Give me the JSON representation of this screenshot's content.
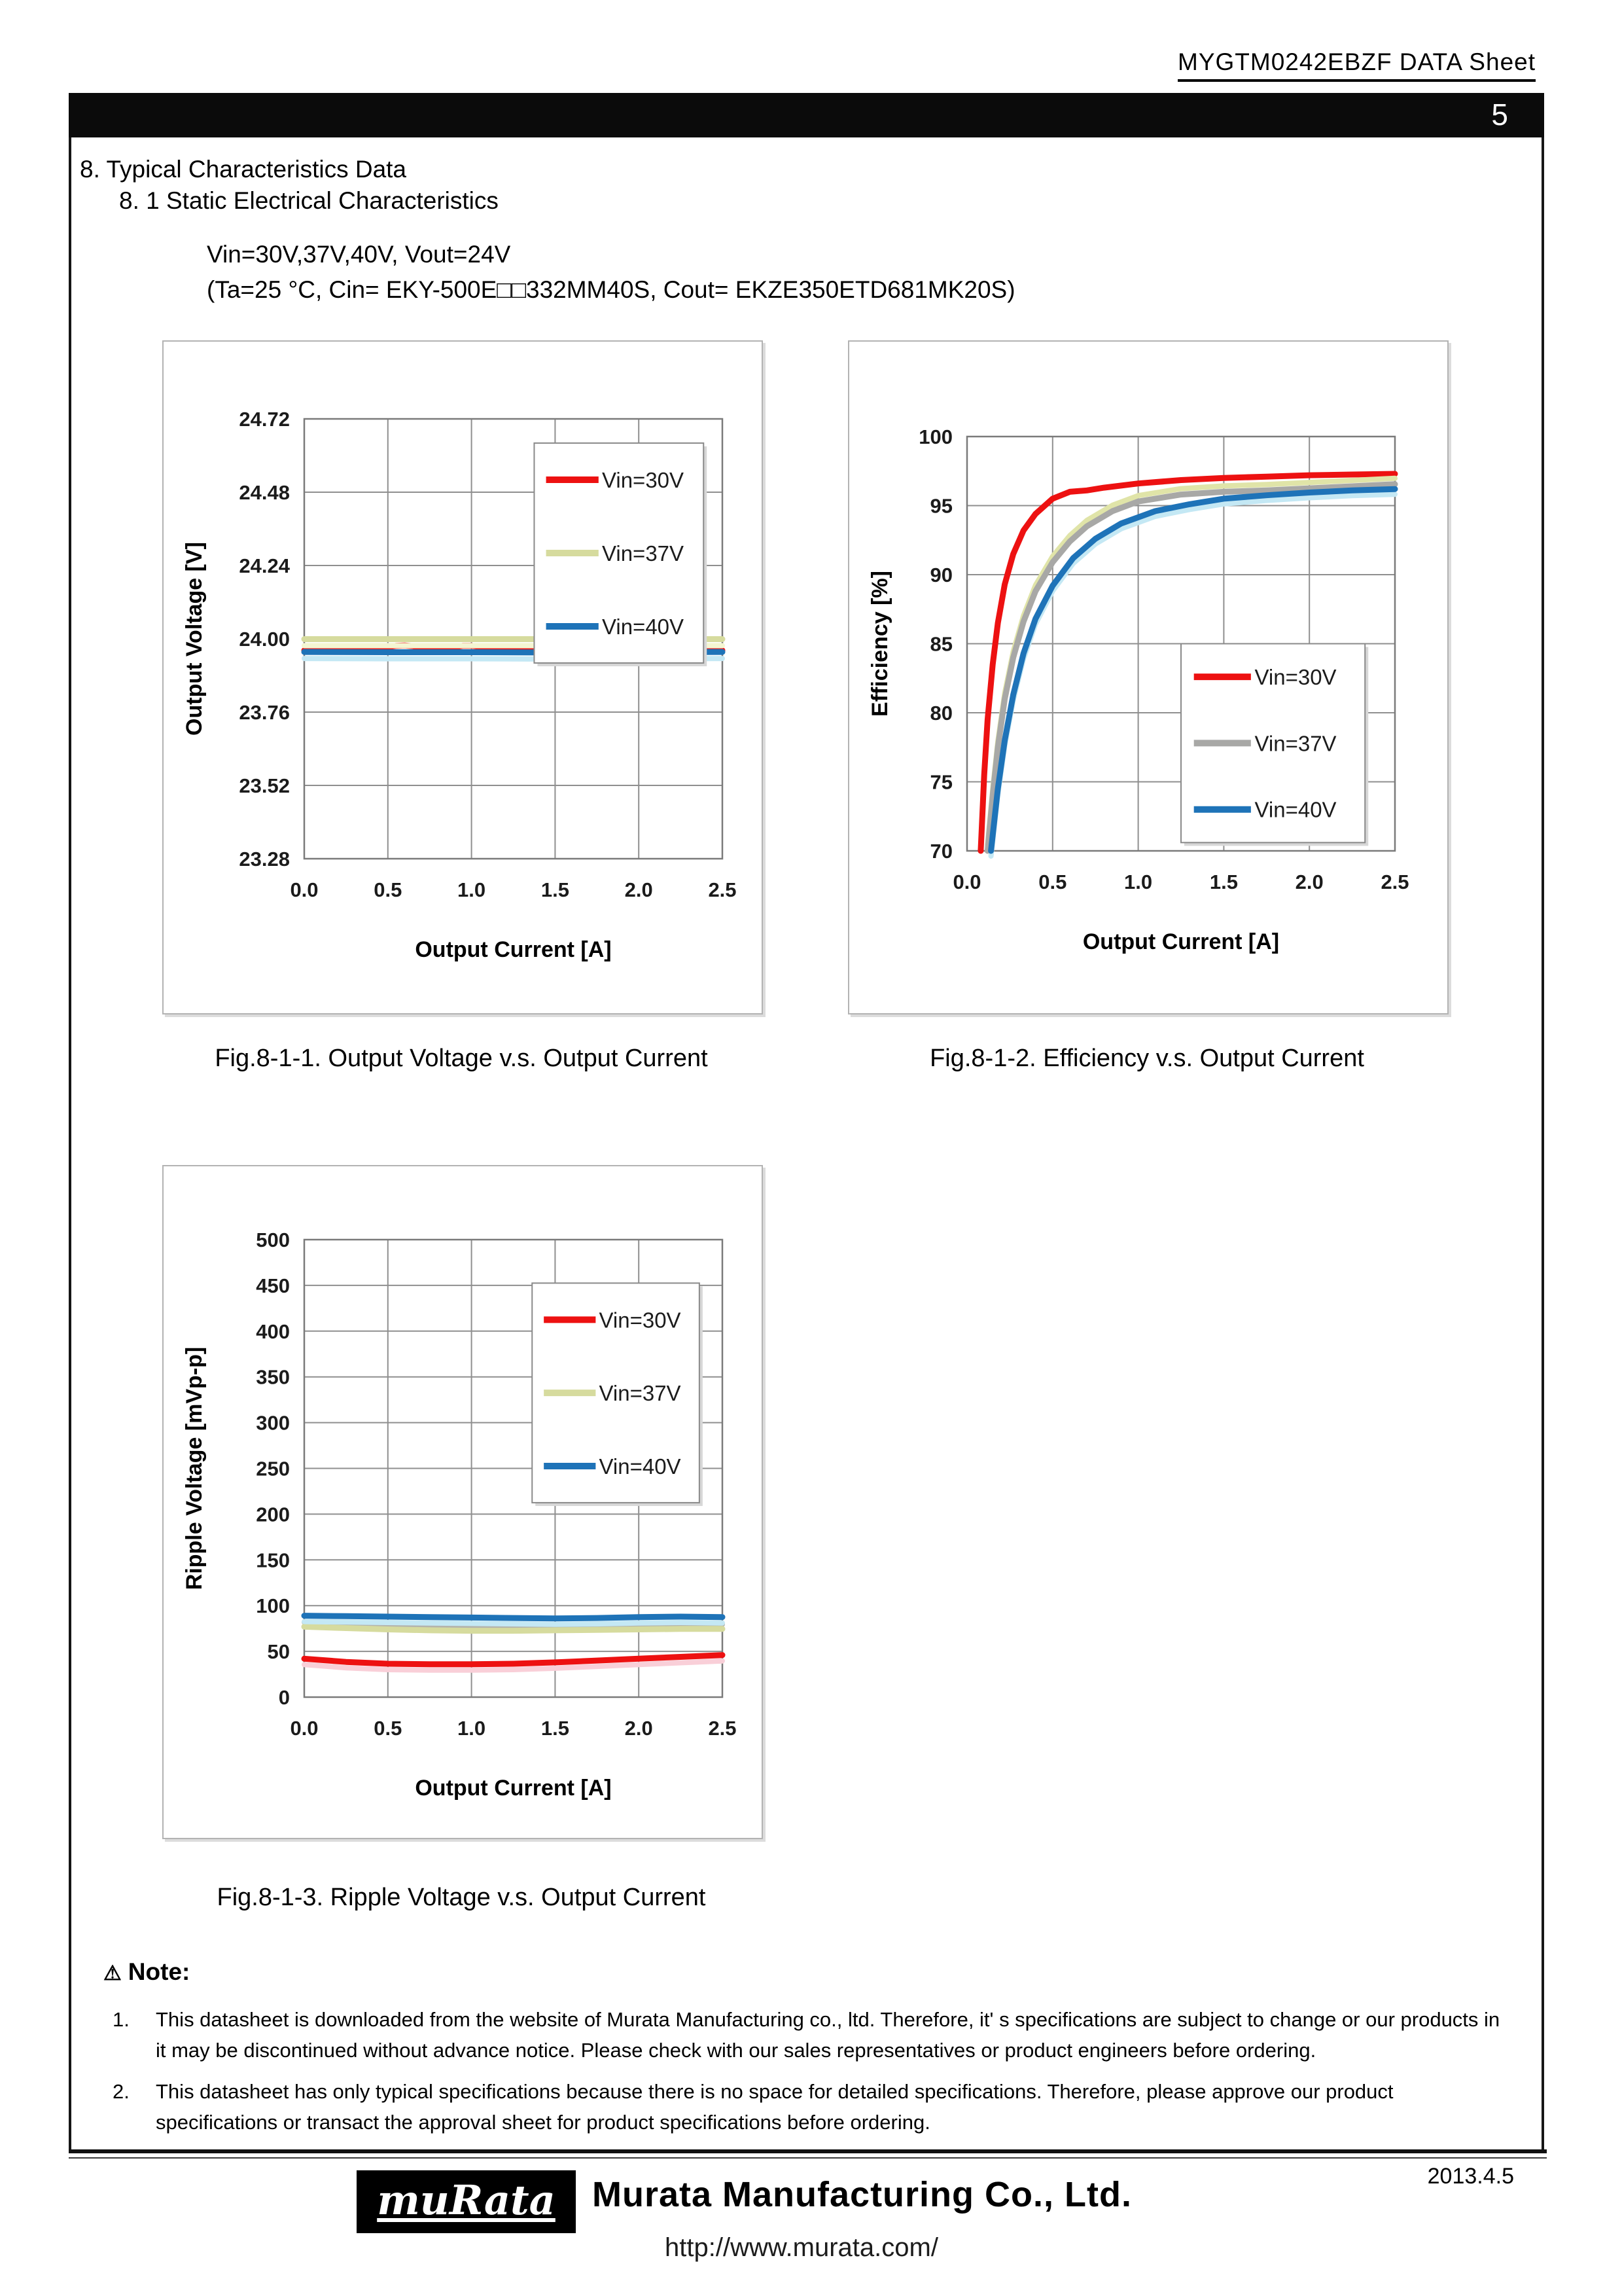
{
  "page": {
    "doc_title": "MYGTM0242EBZF DATA Sheet",
    "page_number": "5",
    "section_heading": "8. Typical Characteristics Data",
    "subsection_heading": "8. 1 Static Electrical Characteristics",
    "condition_line1": "Vin=30V,37V,40V, Vout=24V",
    "condition_line2": "(Ta=25 °C, Cin= EKY-500E□□332MM40S, Cout= EKZE350ETD681MK20S)",
    "date": "2013.4.5"
  },
  "captions": {
    "fig1": "Fig.8-1-1. Output Voltage v.s. Output Current",
    "fig2": "Fig.8-1-2. Efficiency v.s. Output Current",
    "fig3": "Fig.8-1-3. Ripple Voltage v.s. Output Current"
  },
  "note": {
    "icon_glyph": "⚠",
    "heading": "Note:",
    "items": [
      {
        "num": "1.",
        "text": "This datasheet is downloaded from the website of Murata Manufacturing co., ltd. Therefore, it' s specifications are subject to change or our products in it may be discontinued without advance notice. Please check with our sales representatives or product engineers before ordering."
      },
      {
        "num": "2.",
        "text": "This datasheet has only typical specifications because there is no space for detailed specifications. Therefore, please approve our product specifications or transact the approval sheet for product specifications before ordering."
      }
    ]
  },
  "footer": {
    "logo_text": "muRata",
    "company": "Murata Manufacturing Co., Ltd.",
    "url": "http://www.murata.com/"
  },
  "colors": {
    "vin30_red": "#ed1111",
    "vin37_khaki": "#d6db9e",
    "vin37_gray": "#a8a8a6",
    "vin40_blue": "#1e73b8"
  },
  "chart_data": [
    {
      "id": "chart1",
      "type": "line",
      "title": "Fig.8-1-1. Output Voltage v.s. Output Current",
      "xlabel": "Output Current [A]",
      "ylabel": "Output Voltage [V]",
      "x_range": [
        0,
        2.5
      ],
      "y_range": [
        23.28,
        24.72
      ],
      "x_ticks": [
        "0.0",
        "0.5",
        "1.0",
        "1.5",
        "2.0",
        "2.5"
      ],
      "y_ticks": [
        "23.28",
        "23.52",
        "23.76",
        "24.00",
        "24.24",
        "24.48",
        "24.72"
      ],
      "grid": true,
      "legend_position": "upper-right-inside",
      "layout": {
        "margins": {
          "l": 215,
          "t": 118,
          "r": 60,
          "b": 236
        },
        "legend": {
          "x": 0.55,
          "y": 0.055,
          "w": 0.405,
          "h": 0.5
        }
      },
      "series": [
        {
          "name": "Vin=30V",
          "color": "#ed1111",
          "shadow": null,
          "x": [
            0,
            0.2,
            0.4,
            0.5,
            0.55,
            0.6,
            0.65,
            0.7,
            0.8,
            0.9,
            0.95,
            1.0,
            1.05,
            1.1,
            1.2,
            1.5,
            2.0,
            2.5
          ],
          "y": [
            23.962,
            23.962,
            23.965,
            23.973,
            23.977,
            23.978,
            23.976,
            23.969,
            23.964,
            23.973,
            23.977,
            23.977,
            23.974,
            23.966,
            23.962,
            23.961,
            23.962,
            23.962
          ]
        },
        {
          "name": "Vin=37V",
          "color": "#d6db9e",
          "shadow": "#f4f6d2",
          "shadow_dy": 10,
          "x": [
            0,
            0.5,
            1.0,
            1.5,
            2.0,
            2.5
          ],
          "y": [
            23.999,
            23.999,
            23.999,
            23.999,
            23.999,
            23.999
          ]
        },
        {
          "name": "Vin=40V",
          "color": "#1e73b8",
          "shadow": "#c4e8f4",
          "shadow_dy": 10,
          "x": [
            0,
            0.5,
            1.0,
            1.5,
            2.0,
            2.5
          ],
          "y": [
            23.957,
            23.956,
            23.956,
            23.955,
            23.956,
            23.957
          ]
        }
      ]
    },
    {
      "id": "chart2",
      "type": "line",
      "title": "Fig.8-1-2. Efficiency v.s. Output Current",
      "xlabel": "Output Current [A]",
      "ylabel": "Efficiency [%]",
      "x_range": [
        0,
        2.5
      ],
      "y_range": [
        70,
        100
      ],
      "x_ticks": [
        "0.0",
        "0.5",
        "1.0",
        "1.5",
        "2.0",
        "2.5"
      ],
      "y_ticks": [
        "70",
        "75",
        "80",
        "85",
        "90",
        "95",
        "100"
      ],
      "grid": true,
      "legend_position": "lower-right-inside",
      "layout": {
        "margins": {
          "l": 180,
          "t": 145,
          "r": 80,
          "b": 248
        },
        "legend": {
          "x": 0.5,
          "y": 0.5,
          "w": 0.43,
          "h": 0.48
        }
      },
      "series": [
        {
          "name": "Vin=30V",
          "color": "#ed1111",
          "shadow": null,
          "x": [
            0.08,
            0.1,
            0.12,
            0.15,
            0.18,
            0.22,
            0.27,
            0.33,
            0.4,
            0.5,
            0.6,
            0.7,
            0.8,
            1.0,
            1.25,
            1.5,
            1.75,
            2.0,
            2.25,
            2.5
          ],
          "y": [
            70,
            75.5,
            79.5,
            83.5,
            86.5,
            89.3,
            91.5,
            93.2,
            94.4,
            95.5,
            96.0,
            96.1,
            96.3,
            96.6,
            96.85,
            97.0,
            97.1,
            97.2,
            97.25,
            97.3
          ]
        },
        {
          "name": "Vin=37V",
          "color": "#a8a8a6",
          "shadow": "#e0e4a8",
          "shadow_dy": -9,
          "x": [
            0.12,
            0.15,
            0.18,
            0.22,
            0.27,
            0.33,
            0.4,
            0.5,
            0.6,
            0.7,
            0.85,
            1.0,
            1.25,
            1.5,
            1.75,
            2.0,
            2.25,
            2.5
          ],
          "y": [
            70,
            74,
            77.5,
            81,
            84,
            86.6,
            88.8,
            90.9,
            92.4,
            93.5,
            94.6,
            95.3,
            95.8,
            96.0,
            96.1,
            96.25,
            96.4,
            96.55
          ]
        },
        {
          "name": "Vin=40V",
          "color": "#1e73b8",
          "shadow": "#c4e8f4",
          "shadow_dy": 8,
          "x": [
            0.14,
            0.18,
            0.22,
            0.27,
            0.33,
            0.4,
            0.5,
            0.62,
            0.75,
            0.9,
            1.1,
            1.3,
            1.5,
            1.75,
            2.0,
            2.25,
            2.5
          ],
          "y": [
            70,
            74.5,
            78,
            81.3,
            84.3,
            86.8,
            89.2,
            91.2,
            92.6,
            93.7,
            94.6,
            95.1,
            95.5,
            95.75,
            95.95,
            96.1,
            96.2
          ]
        }
      ]
    },
    {
      "id": "chart3",
      "type": "line",
      "title": "Fig.8-1-3. Ripple Voltage v.s. Output Current",
      "xlabel": "Output Current [A]",
      "ylabel": "Ripple Voltage [mVp-p]",
      "x_range": [
        0,
        2.5
      ],
      "y_range": [
        0,
        500
      ],
      "x_ticks": [
        "0.0",
        "0.5",
        "1.0",
        "1.5",
        "2.0",
        "2.5"
      ],
      "y_ticks": [
        "0",
        "50",
        "100",
        "150",
        "200",
        "250",
        "300",
        "350",
        "400",
        "450",
        "500"
      ],
      "grid": true,
      "legend_position": "upper-right-inside",
      "layout": {
        "margins": {
          "l": 215,
          "t": 112,
          "r": 60,
          "b": 215
        },
        "legend": {
          "x": 0.545,
          "y": 0.095,
          "w": 0.4,
          "h": 0.48
        }
      },
      "series": [
        {
          "name": "Vin=30V",
          "color": "#ed1111",
          "shadow": "#f9cfd8",
          "shadow_dy": 9,
          "x": [
            0,
            0.25,
            0.5,
            0.75,
            1.0,
            1.25,
            1.5,
            1.75,
            2.0,
            2.25,
            2.5
          ],
          "y": [
            42,
            38.5,
            36.5,
            36,
            36,
            36.5,
            38,
            40,
            42,
            44,
            46
          ]
        },
        {
          "name": "Vin=37V",
          "color": "#d6db9e",
          "shadow": "#b4b4ac",
          "shadow_dy": -7,
          "x": [
            0,
            0.25,
            0.5,
            0.75,
            1.0,
            1.25,
            1.5,
            1.75,
            2.0,
            2.25,
            2.5
          ],
          "y": [
            77,
            75.5,
            74,
            73,
            72.5,
            72.5,
            73,
            73.5,
            74,
            74.5,
            74.5
          ]
        },
        {
          "name": "Vin=40V",
          "color": "#1e73b8",
          "shadow": "#c4e8f4",
          "shadow_dy": 9,
          "x": [
            0,
            0.25,
            0.5,
            0.75,
            1.0,
            1.25,
            1.5,
            1.75,
            2.0,
            2.25,
            2.5
          ],
          "y": [
            89,
            88.5,
            88,
            87.5,
            87,
            86.5,
            86,
            86.5,
            87.5,
            88,
            87.5
          ]
        }
      ]
    }
  ]
}
